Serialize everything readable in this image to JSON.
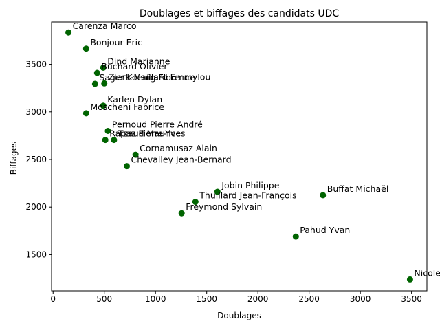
{
  "chart_data": {
    "type": "scatter",
    "title": "Doublages et biffages des candidats UDC",
    "xlabel": "Doublages",
    "ylabel": "Biffages",
    "xlim": [
      -15,
      3650
    ],
    "ylim": [
      1120,
      3945
    ],
    "xticks": [
      0,
      500,
      1000,
      1500,
      2000,
      2500,
      3000,
      3500
    ],
    "yticks": [
      1500,
      2000,
      2500,
      3000,
      3500
    ],
    "grid": false,
    "legend": false,
    "color": "#006400",
    "points": [
      {
        "label": "Carenza Marco",
        "x": 150,
        "y": 3835
      },
      {
        "label": "Bonjour Eric",
        "x": 323,
        "y": 3665
      },
      {
        "label": "Dind Marianne",
        "x": 490,
        "y": 3465
      },
      {
        "label": "Buchard Olivier",
        "x": 430,
        "y": 3410
      },
      {
        "label": "Zierk-Maillard Emmylou",
        "x": 500,
        "y": 3300
      },
      {
        "label": "Sager-Koenig Florence",
        "x": 410,
        "y": 3295
      },
      {
        "label": "Karlen Dylan",
        "x": 490,
        "y": 3065
      },
      {
        "label": "Moscheni Fabrice",
        "x": 323,
        "y": 2985
      },
      {
        "label": "Pernoud Pierre André",
        "x": 535,
        "y": 2800
      },
      {
        "label": "Tzaud Maurice",
        "x": 595,
        "y": 2705
      },
      {
        "label": "Rapaz Pierre-Yves",
        "x": 510,
        "y": 2705
      },
      {
        "label": "Cornamusaz Alain",
        "x": 805,
        "y": 2550
      },
      {
        "label": "Chevalley Jean-Bernard",
        "x": 720,
        "y": 2430
      },
      {
        "label": "Jobin Philippe",
        "x": 1605,
        "y": 2160
      },
      {
        "label": "Buffat Michaël",
        "x": 2635,
        "y": 2125
      },
      {
        "label": "Thuillard Jean-François",
        "x": 1390,
        "y": 2055
      },
      {
        "label": "Freymond Sylvain",
        "x": 1255,
        "y": 1935
      },
      {
        "label": "Pahud Yvan",
        "x": 2370,
        "y": 1690
      },
      {
        "label": "Nicolet Jean-Marc",
        "x": 3485,
        "y": 1240
      }
    ]
  }
}
